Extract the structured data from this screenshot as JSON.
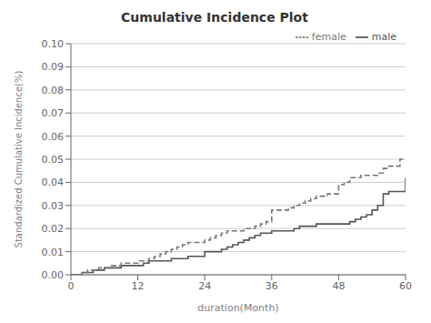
{
  "chart_data": {
    "type": "line",
    "title": "Cumulative Incidence Plot",
    "x_label": "duration(Month)",
    "y_label": "Standardized Cumulative Incidence(%)",
    "x": [
      0,
      1,
      2,
      3,
      4,
      5,
      6,
      7,
      8,
      9,
      10,
      11,
      12,
      13,
      14,
      15,
      16,
      17,
      18,
      19,
      20,
      21,
      22,
      23,
      24,
      25,
      26,
      27,
      28,
      29,
      30,
      31,
      32,
      33,
      34,
      35,
      36,
      37,
      38,
      39,
      40,
      41,
      42,
      43,
      44,
      45,
      46,
      47,
      48,
      49,
      50,
      51,
      52,
      53,
      54,
      55,
      56,
      57,
      58,
      59,
      60
    ],
    "series": [
      {
        "name": "male",
        "color": "#555555",
        "line_style": "solid",
        "values": [
          0.0,
          0.0,
          0.001,
          0.001,
          0.002,
          0.002,
          0.003,
          0.003,
          0.003,
          0.004,
          0.004,
          0.004,
          0.004,
          0.005,
          0.006,
          0.006,
          0.006,
          0.006,
          0.007,
          0.007,
          0.007,
          0.008,
          0.008,
          0.008,
          0.01,
          0.01,
          0.01,
          0.011,
          0.012,
          0.013,
          0.014,
          0.015,
          0.016,
          0.017,
          0.018,
          0.018,
          0.019,
          0.019,
          0.019,
          0.019,
          0.02,
          0.021,
          0.021,
          0.021,
          0.022,
          0.022,
          0.022,
          0.022,
          0.022,
          0.022,
          0.023,
          0.024,
          0.025,
          0.026,
          0.028,
          0.03,
          0.035,
          0.036,
          0.036,
          0.036,
          0.042
        ]
      },
      {
        "name": "female",
        "color": "#777777",
        "line_style": "dashed",
        "values": [
          0.0,
          0.0,
          0.001,
          0.002,
          0.002,
          0.003,
          0.003,
          0.004,
          0.004,
          0.005,
          0.005,
          0.005,
          0.006,
          0.006,
          0.007,
          0.008,
          0.009,
          0.01,
          0.011,
          0.012,
          0.013,
          0.014,
          0.014,
          0.014,
          0.015,
          0.016,
          0.017,
          0.018,
          0.019,
          0.019,
          0.019,
          0.02,
          0.02,
          0.021,
          0.022,
          0.023,
          0.028,
          0.028,
          0.028,
          0.029,
          0.03,
          0.031,
          0.032,
          0.033,
          0.034,
          0.034,
          0.035,
          0.035,
          0.039,
          0.04,
          0.042,
          0.042,
          0.043,
          0.043,
          0.043,
          0.044,
          0.046,
          0.047,
          0.047,
          0.05,
          0.05
        ]
      }
    ],
    "xlim": [
      0,
      60
    ],
    "xticks": [
      0,
      12,
      24,
      36,
      48,
      60
    ],
    "ylim": [
      0,
      0.1
    ],
    "yticks": [
      {
        "value": 0.0,
        "label": "0.00"
      },
      0.01,
      0.02,
      0.03,
      0.04,
      0.05,
      0.06,
      0.07,
      0.08,
      0.09,
      {
        "value": 0.1,
        "label": "0.10"
      }
    ],
    "grid": true,
    "legend": "upper right"
  }
}
